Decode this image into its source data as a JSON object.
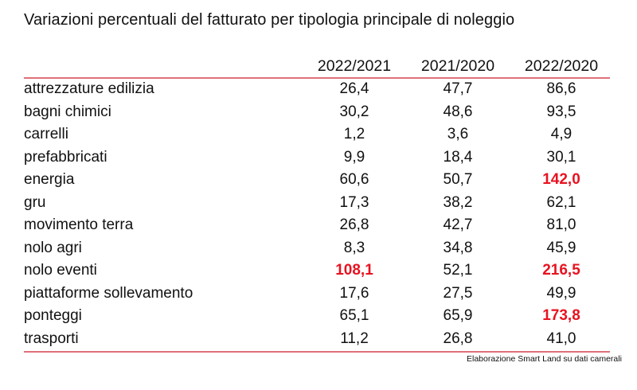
{
  "title": "Variazioni percentuali del fatturato per tipologia principale di noleggio",
  "columns": [
    "2022/2021",
    "2021/2020",
    "2022/2020"
  ],
  "highlight_color": "#e8121f",
  "rows": [
    {
      "label": "attrezzature edilizia",
      "values": [
        "26,4",
        "47,7",
        "86,6"
      ],
      "highlight": [
        false,
        false,
        false
      ]
    },
    {
      "label": "bagni chimici",
      "values": [
        "30,2",
        "48,6",
        "93,5"
      ],
      "highlight": [
        false,
        false,
        false
      ]
    },
    {
      "label": "carrelli",
      "values": [
        "1,2",
        "3,6",
        "4,9"
      ],
      "highlight": [
        false,
        false,
        false
      ]
    },
    {
      "label": "prefabbricati",
      "values": [
        "9,9",
        "18,4",
        "30,1"
      ],
      "highlight": [
        false,
        false,
        false
      ]
    },
    {
      "label": "energia",
      "values": [
        "60,6",
        "50,7",
        "142,0"
      ],
      "highlight": [
        false,
        false,
        true
      ]
    },
    {
      "label": "gru",
      "values": [
        "17,3",
        "38,2",
        "62,1"
      ],
      "highlight": [
        false,
        false,
        false
      ]
    },
    {
      "label": "movimento terra",
      "values": [
        "26,8",
        "42,7",
        "81,0"
      ],
      "highlight": [
        false,
        false,
        false
      ]
    },
    {
      "label": "nolo agri",
      "values": [
        "8,3",
        "34,8",
        "45,9"
      ],
      "highlight": [
        false,
        false,
        false
      ]
    },
    {
      "label": "nolo eventi",
      "values": [
        "108,1",
        "52,1",
        "216,5"
      ],
      "highlight": [
        true,
        false,
        true
      ]
    },
    {
      "label": "piattaforme sollevamento",
      "values": [
        "17,6",
        "27,5",
        "49,9"
      ],
      "highlight": [
        false,
        false,
        false
      ]
    },
    {
      "label": "ponteggi",
      "values": [
        "65,1",
        "65,9",
        "173,8"
      ],
      "highlight": [
        false,
        false,
        true
      ]
    },
    {
      "label": "trasporti",
      "values": [
        "11,2",
        "26,8",
        "41,0"
      ],
      "highlight": [
        false,
        false,
        false
      ]
    }
  ],
  "source": "Elaborazione Smart Land su dati camerali"
}
